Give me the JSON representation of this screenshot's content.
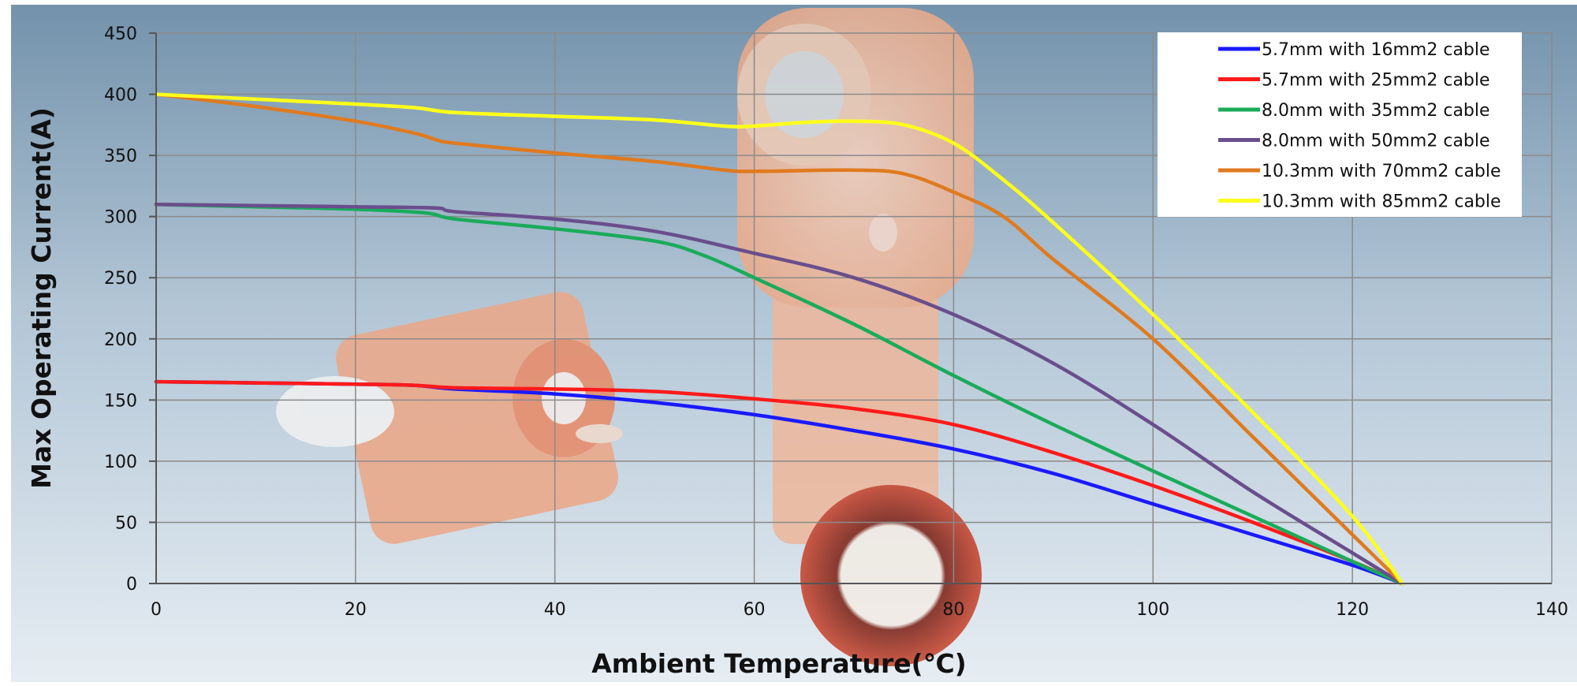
{
  "chart_data": {
    "type": "line",
    "title": "",
    "xlabel": "Ambient Temperature(℃)",
    "ylabel": "Max Operating Current(A)",
    "xlim": [
      0,
      140
    ],
    "ylim": [
      0,
      450
    ],
    "xticks": [
      "0",
      "20",
      "40",
      "60",
      "80",
      "100",
      "120",
      "140"
    ],
    "yticks": [
      "0",
      "50",
      "100",
      "150",
      "200",
      "250",
      "300",
      "350",
      "400",
      "450"
    ],
    "grid": true,
    "legend_position": "top-right",
    "series": [
      {
        "name": "5.7mm with 16mm2 cable",
        "color": "#1a1aff",
        "x": [
          0,
          10,
          20,
          26,
          30,
          40,
          50,
          60,
          70,
          80,
          90,
          100,
          110,
          120,
          125
        ],
        "y": [
          165,
          164,
          163,
          162,
          159,
          155,
          148,
          138,
          125,
          110,
          90,
          65,
          40,
          15,
          0
        ]
      },
      {
        "name": "5.7mm with 25mm2 cable",
        "color": "#ff1a1a",
        "x": [
          0,
          10,
          20,
          26,
          30,
          40,
          50,
          60,
          70,
          80,
          90,
          100,
          110,
          120,
          125
        ],
        "y": [
          165,
          164,
          163,
          162,
          160,
          159,
          157,
          151,
          143,
          130,
          107,
          80,
          50,
          18,
          0
        ]
      },
      {
        "name": "8.0mm with 35mm2 cable",
        "color": "#1aab5a",
        "x": [
          0,
          10,
          20,
          27,
          30,
          40,
          50,
          55,
          60,
          70,
          80,
          90,
          100,
          110,
          120,
          125
        ],
        "y": [
          310,
          308,
          306,
          303,
          298,
          290,
          280,
          268,
          250,
          212,
          170,
          130,
          92,
          55,
          18,
          0
        ]
      },
      {
        "name": "8.0mm with 50mm2 cable",
        "color": "#6a4e8c",
        "x": [
          0,
          10,
          20,
          28,
          30,
          40,
          50,
          60,
          70,
          80,
          90,
          100,
          110,
          120,
          125
        ],
        "y": [
          310,
          309,
          308,
          307,
          304,
          298,
          288,
          270,
          250,
          220,
          180,
          130,
          75,
          25,
          0
        ]
      },
      {
        "name": "10.3mm with 70mm2 cable",
        "color": "#e07a1f",
        "x": [
          0,
          10,
          20,
          26,
          28,
          30,
          40,
          50,
          57,
          60,
          70,
          75,
          80,
          85,
          90,
          100,
          110,
          120,
          125
        ],
        "y": [
          400,
          390,
          378,
          368,
          363,
          360,
          352,
          345,
          338,
          337,
          338,
          335,
          320,
          300,
          265,
          200,
          120,
          40,
          0
        ]
      },
      {
        "name": "10.3mm with 85mm2 cable",
        "color": "#ffff1a",
        "x": [
          0,
          10,
          20,
          26,
          30,
          40,
          50,
          57,
          60,
          65,
          70,
          75,
          80,
          85,
          90,
          100,
          110,
          120,
          125
        ],
        "y": [
          400,
          396,
          392,
          389,
          385,
          382,
          379,
          374,
          374,
          377,
          378,
          375,
          360,
          330,
          295,
          220,
          140,
          55,
          0
        ]
      }
    ]
  }
}
